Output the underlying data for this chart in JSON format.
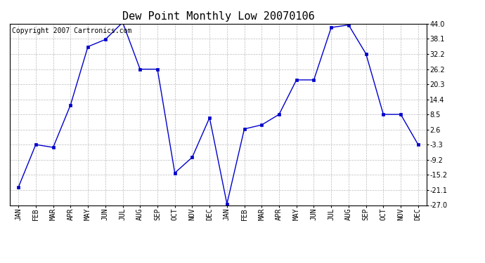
{
  "title": "Dew Point Monthly Low 20070106",
  "copyright": "Copyright 2007 Cartronics.com",
  "x_labels": [
    "JAN",
    "FEB",
    "MAR",
    "APR",
    "MAY",
    "JUN",
    "JUL",
    "AUG",
    "SEP",
    "OCT",
    "NOV",
    "DEC",
    "JAN",
    "FEB",
    "MAR",
    "APR",
    "MAY",
    "JUN",
    "JUL",
    "AUG",
    "SEP",
    "OCT",
    "NOV",
    "DEC"
  ],
  "y_values": [
    -20.0,
    -3.3,
    -4.4,
    12.2,
    35.0,
    37.8,
    44.5,
    26.2,
    26.2,
    -14.4,
    -8.3,
    7.2,
    -26.5,
    2.8,
    4.4,
    8.5,
    22.0,
    22.0,
    42.5,
    43.5,
    32.2,
    8.5,
    8.5,
    -3.3
  ],
  "line_color": "#0000cc",
  "marker": "s",
  "marker_size": 2.5,
  "background_color": "#ffffff",
  "plot_bg_color": "#ffffff",
  "grid_color": "#bbbbbb",
  "y_ticks": [
    44.0,
    38.1,
    32.2,
    26.2,
    20.3,
    14.4,
    8.5,
    2.6,
    -3.3,
    -9.2,
    -15.2,
    -21.1,
    -27.0
  ],
  "ylim": [
    -27.0,
    44.0
  ],
  "title_fontsize": 11,
  "tick_fontsize": 7,
  "copyright_fontsize": 7
}
